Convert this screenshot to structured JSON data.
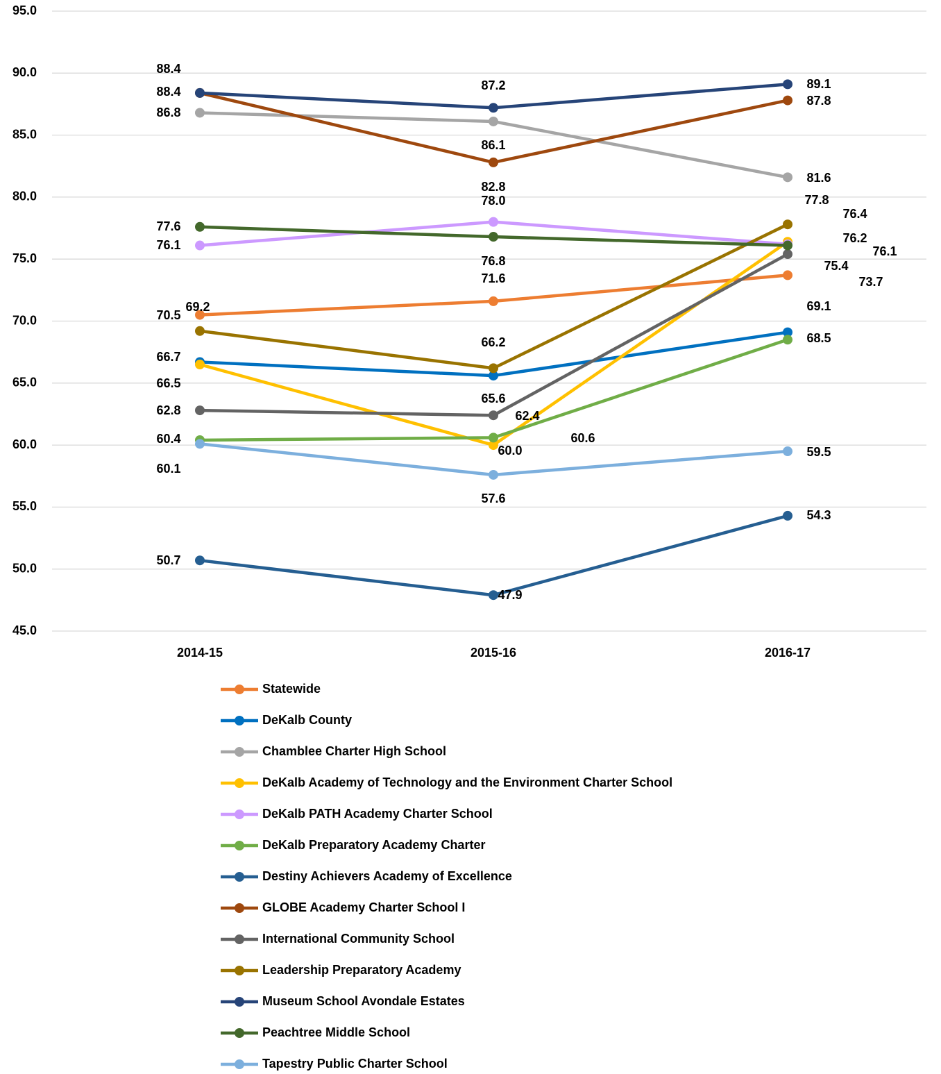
{
  "chart_data": {
    "type": "line",
    "categories": [
      "2014-15",
      "2015-16",
      "2016-17"
    ],
    "ylim": [
      45,
      95
    ],
    "yticks": [
      {
        "value": 45,
        "label": "45.0"
      },
      {
        "value": 50,
        "label": "50.0"
      },
      {
        "value": 55,
        "label": "55.0"
      },
      {
        "value": 60,
        "label": "60.0"
      },
      {
        "value": 65,
        "label": "65.0"
      },
      {
        "value": 70,
        "label": "70.0"
      },
      {
        "value": 75,
        "label": "75.0"
      },
      {
        "value": 80,
        "label": "80.0"
      },
      {
        "value": 85,
        "label": "85.0"
      },
      {
        "value": 90,
        "label": "90.0"
      },
      {
        "value": 95,
        "label": "95.0"
      }
    ],
    "grid": true,
    "series": [
      {
        "name": "Statewide",
        "color": "#ed7d31",
        "values": [
          70.5,
          71.6,
          73.7
        ]
      },
      {
        "name": "DeKalb County",
        "color": "#0070c0",
        "values": [
          66.7,
          65.6,
          69.1
        ]
      },
      {
        "name": "Chamblee Charter High School",
        "color": "#a5a5a5",
        "values": [
          86.8,
          86.1,
          81.6
        ]
      },
      {
        "name": "DeKalb Academy of Technology and the Environment Charter School",
        "color": "#ffc000",
        "values": [
          66.5,
          60.0,
          76.4
        ],
        "value_labels": [
          "66.5",
          "60.0",
          "76.4"
        ]
      },
      {
        "name": "DeKalb PATH Academy Charter School",
        "color": "#cc99ff",
        "values": [
          76.1,
          78.0,
          76.2
        ],
        "value_labels": [
          "76.1",
          "78.0",
          "76.2"
        ]
      },
      {
        "name": "DeKalb Preparatory Academy Charter",
        "color": "#70ad47",
        "values": [
          60.4,
          60.6,
          68.5
        ]
      },
      {
        "name": "Destiny Achievers Academy of Excellence",
        "color": "#255e91",
        "values": [
          50.7,
          47.9,
          54.3
        ]
      },
      {
        "name": "GLOBE Academy Charter School I",
        "color": "#9e480e",
        "values": [
          88.4,
          82.8,
          87.8
        ]
      },
      {
        "name": "International Community School",
        "color": "#636363",
        "values": [
          62.8,
          62.4,
          75.4
        ]
      },
      {
        "name": "Leadership Preparatory Academy",
        "color": "#997300",
        "values": [
          69.2,
          66.2,
          77.8
        ]
      },
      {
        "name": "Museum School Avondale Estates",
        "color": "#264478",
        "values": [
          88.4,
          87.2,
          89.1
        ]
      },
      {
        "name": "Peachtree Middle School",
        "color": "#43682b",
        "values": [
          77.6,
          76.8,
          76.1
        ]
      },
      {
        "name": "Tapestry Public Charter School",
        "color": "#7cafdd",
        "values": [
          60.1,
          57.6,
          59.5
        ]
      }
    ]
  }
}
